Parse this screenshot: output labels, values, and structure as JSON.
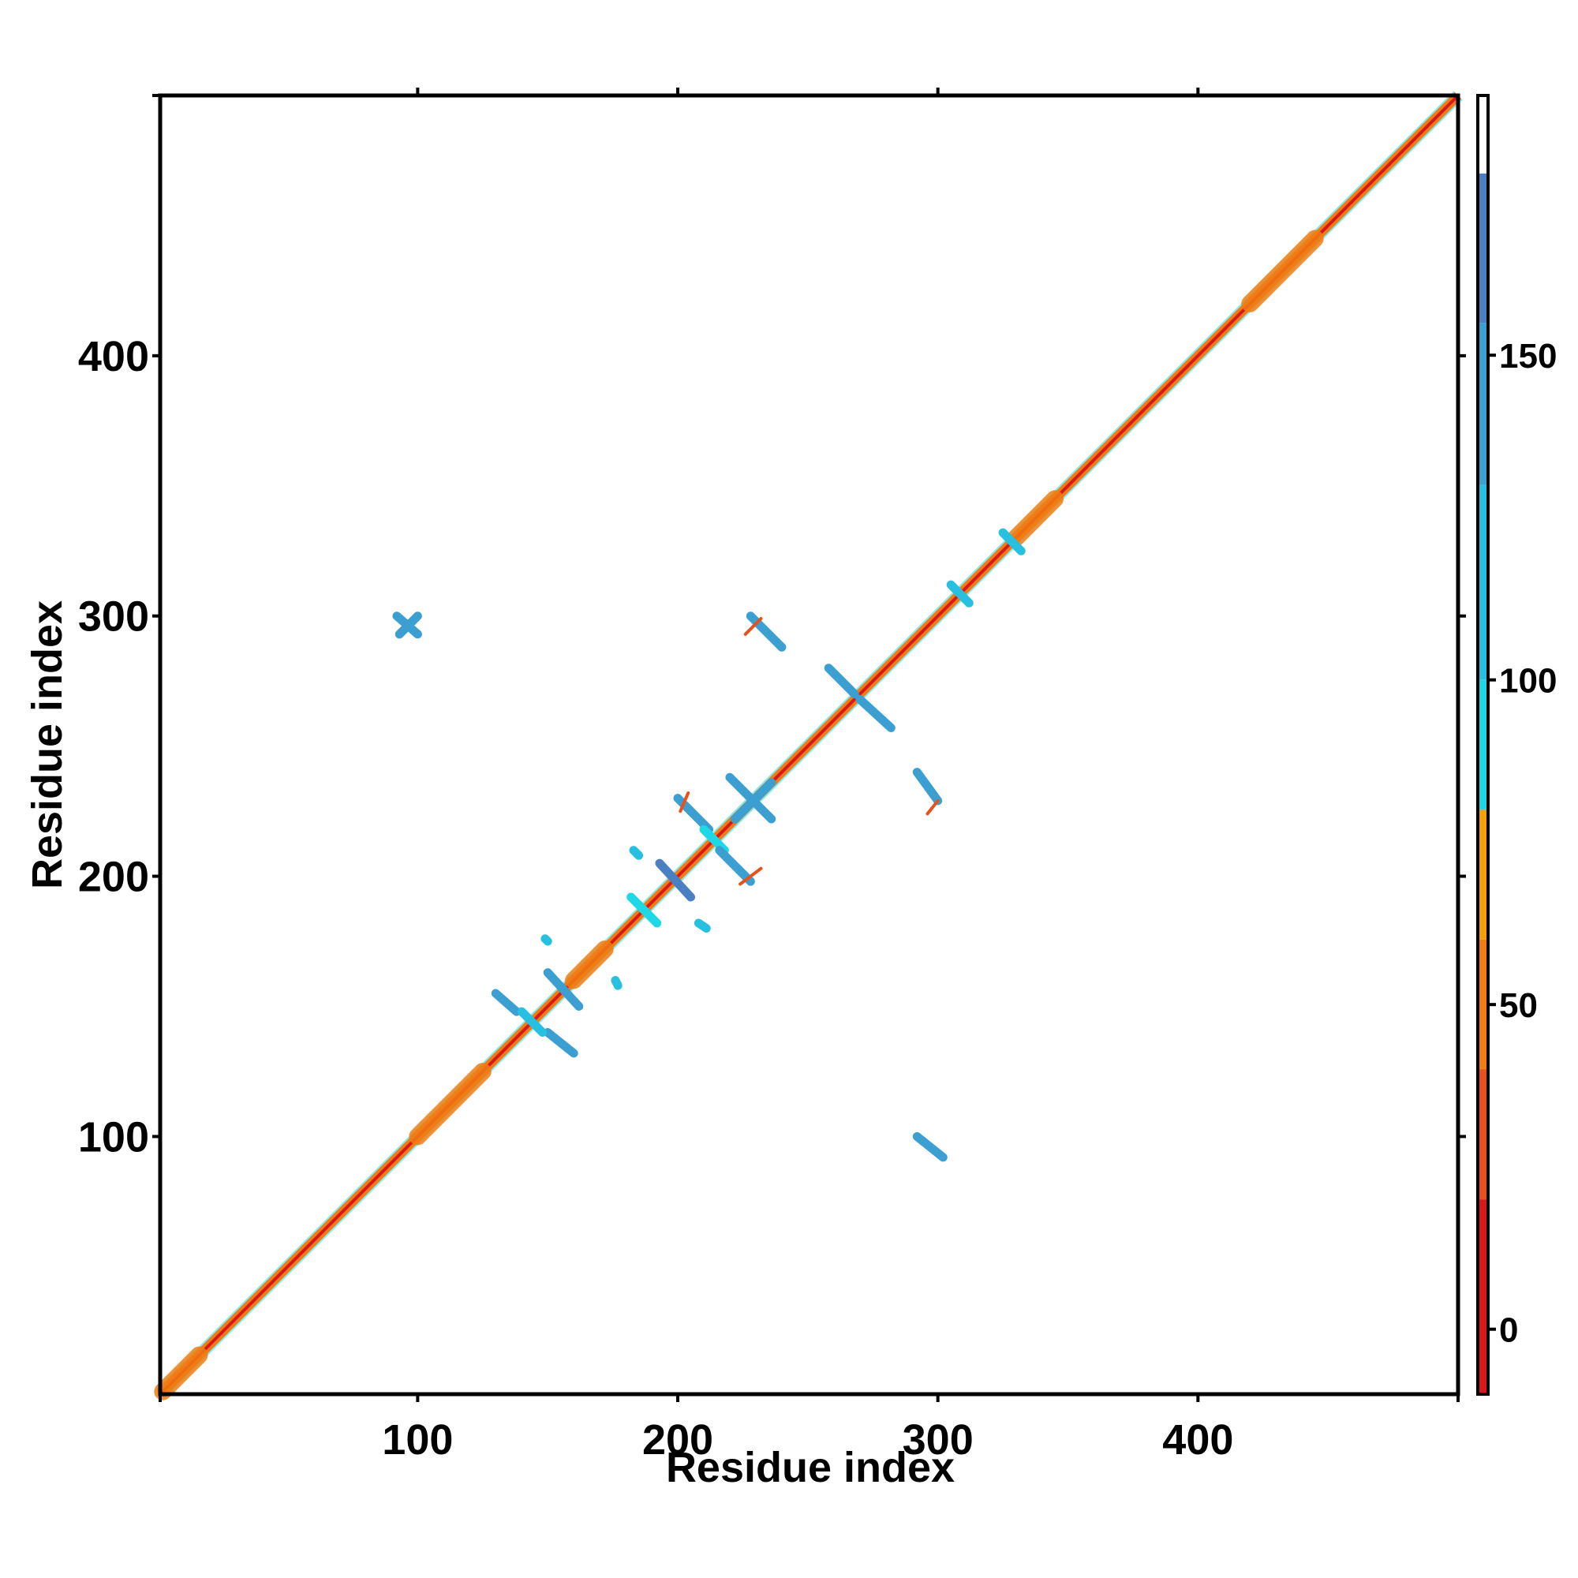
{
  "chart_data": {
    "type": "heatmap",
    "xlabel": "Residue index",
    "ylabel": "Residue index",
    "xlim": [
      1,
      500
    ],
    "ylim": [
      1,
      500
    ],
    "x_ticks": [
      100,
      200,
      300,
      400
    ],
    "y_ticks": [
      100,
      200,
      300,
      400
    ],
    "colorbar": {
      "range": [
        -10,
        190
      ],
      "ticks": [
        0,
        50,
        100,
        150
      ],
      "bands": [
        {
          "from": -10,
          "to": 20,
          "color": "#d7191c"
        },
        {
          "from": 20,
          "to": 40,
          "color": "#e8501e"
        },
        {
          "from": 40,
          "to": 60,
          "color": "#f07c13"
        },
        {
          "from": 60,
          "to": 80,
          "color": "#f5a00a"
        },
        {
          "from": 80,
          "to": 100,
          "color": "#1ed8e6"
        },
        {
          "from": 100,
          "to": 130,
          "color": "#28c0e0"
        },
        {
          "from": 130,
          "to": 155,
          "color": "#3c9fd2"
        },
        {
          "from": 155,
          "to": 178,
          "color": "#4a7fc4"
        },
        {
          "from": 178,
          "to": 190,
          "color": "#ffffff"
        }
      ]
    },
    "diagonal": {
      "from": 1,
      "to": 500,
      "core_color": "#d7191c",
      "band_color": "#f07c13",
      "halo_color": "#1ed8e6"
    },
    "contacts": [
      {
        "x": [
          92,
          100
        ],
        "y": [
          300,
          293
        ],
        "color": "#3c9fd2"
      },
      {
        "x": [
          93,
          100
        ],
        "y": [
          293,
          300
        ],
        "color": "#3c9fd2"
      },
      {
        "x": [
          228,
          240
        ],
        "y": [
          300,
          288
        ],
        "color": "#3c9fd2"
      },
      {
        "x": [
          226,
          232
        ],
        "y": [
          293,
          299
        ],
        "color": "#e8501e"
      },
      {
        "x": [
          258,
          268
        ],
        "y": [
          280,
          270
        ],
        "color": "#3c9fd2"
      },
      {
        "x": [
          270,
          282
        ],
        "y": [
          268,
          257
        ],
        "color": "#3c9fd2"
      },
      {
        "x": [
          292,
          300
        ],
        "y": [
          240,
          229
        ],
        "color": "#3c9fd2"
      },
      {
        "x": [
          296,
          300
        ],
        "y": [
          224,
          229
        ],
        "color": "#e8501e"
      },
      {
        "x": [
          292,
          302
        ],
        "y": [
          100,
          92
        ],
        "color": "#3c9fd2"
      },
      {
        "x": [
          130,
          138
        ],
        "y": [
          155,
          148
        ],
        "color": "#3c9fd2"
      },
      {
        "x": [
          150,
          160
        ],
        "y": [
          140,
          132
        ],
        "color": "#3c9fd2"
      },
      {
        "x": [
          150,
          162
        ],
        "y": [
          163,
          150
        ],
        "color": "#3c9fd2"
      },
      {
        "x": [
          140,
          148
        ],
        "y": [
          148,
          140
        ],
        "color": "#28c0e0"
      },
      {
        "x": [
          182,
          192
        ],
        "y": [
          192,
          182
        ],
        "color": "#1ed8e6"
      },
      {
        "x": [
          193,
          205
        ],
        "y": [
          205,
          192
        ],
        "color": "#4a7fc4"
      },
      {
        "x": [
          200,
          212
        ],
        "y": [
          230,
          218
        ],
        "color": "#3c9fd2"
      },
      {
        "x": [
          201,
          204
        ],
        "y": [
          225,
          232
        ],
        "color": "#e8501e"
      },
      {
        "x": [
          210,
          218
        ],
        "y": [
          218,
          210
        ],
        "color": "#1ed8e6"
      },
      {
        "x": [
          216,
          228
        ],
        "y": [
          210,
          198
        ],
        "color": "#3c9fd2"
      },
      {
        "x": [
          224,
          232
        ],
        "y": [
          197,
          203
        ],
        "color": "#e8501e"
      },
      {
        "x": [
          220,
          236
        ],
        "y": [
          238,
          222
        ],
        "color": "#3c9fd2"
      },
      {
        "x": [
          222,
          236
        ],
        "y": [
          222,
          236
        ],
        "color": "#3c9fd2"
      },
      {
        "x": [
          305,
          312
        ],
        "y": [
          312,
          305
        ],
        "color": "#28c0e0"
      },
      {
        "x": [
          325,
          332
        ],
        "y": [
          332,
          325
        ],
        "color": "#28c0e0"
      },
      {
        "x": [
          183,
          185
        ],
        "y": [
          210,
          208
        ],
        "color": "#28c0e0"
      },
      {
        "x": [
          208,
          211
        ],
        "y": [
          182,
          180
        ],
        "color": "#28c0e0"
      },
      {
        "x": [
          176,
          177
        ],
        "y": [
          160,
          158
        ],
        "color": "#28c0e0"
      },
      {
        "x": [
          149,
          150
        ],
        "y": [
          176,
          175
        ],
        "color": "#28c0e0"
      }
    ]
  }
}
